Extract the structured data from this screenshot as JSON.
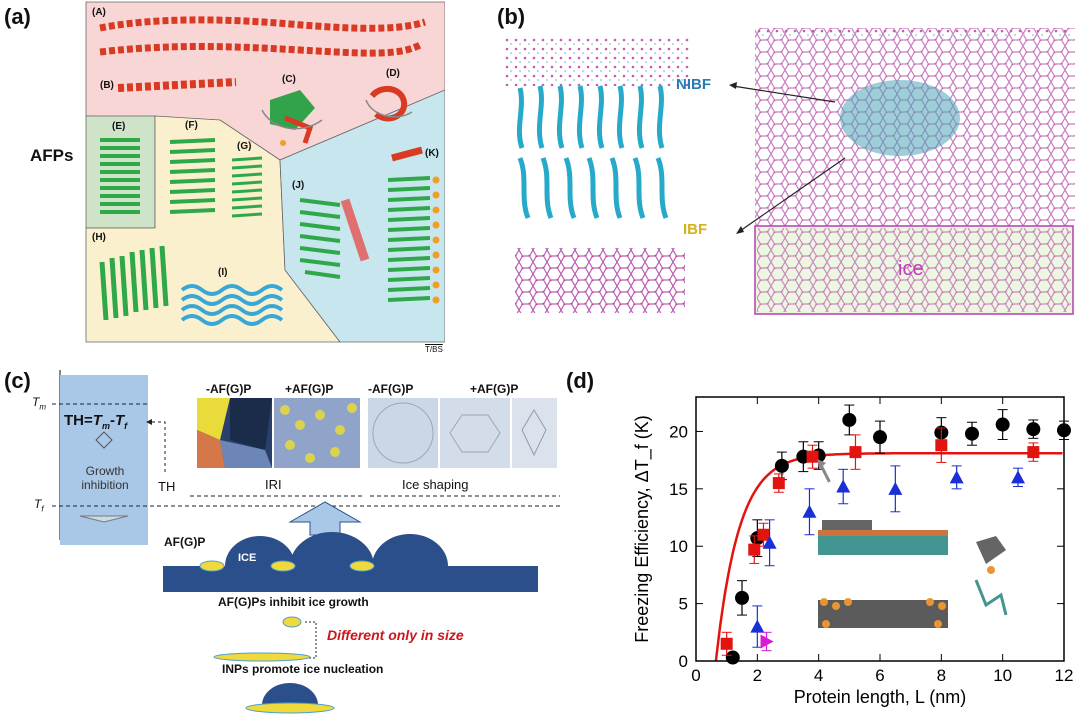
{
  "panels": {
    "a": {
      "label": "(a)",
      "side_label": "AFPs",
      "structure_labels": [
        "(A)",
        "(B)",
        "(C)",
        "(D)",
        "(E)",
        "(F)",
        "(G)",
        "(H)",
        "(I)",
        "(J)",
        "(K)"
      ],
      "credit": "T/BS"
    },
    "b": {
      "label": "(b)",
      "nibf": "NIBF",
      "ibf": "IBF",
      "ice": "ice"
    },
    "c": {
      "label": "(c)",
      "tm": "T",
      "tm_sub": "m",
      "tf": "T",
      "tf_sub": "f",
      "th_eq": "TH=",
      "th_eq_tm": "T",
      "th_eq_tm_sub": "m",
      "th_eq_minus": "-",
      "th_eq_tf": "T",
      "th_eq_tf_sub": "f",
      "growth_inhibition": "Growth inhibition",
      "th": "TH",
      "minus_afgp_1": "-AF(G)P",
      "plus_afgp_1": "+AF(G)P",
      "minus_afgp_2": "-AF(G)P",
      "plus_afgp_2": "+AF(G)P",
      "iri": "IRI",
      "ice_shaping": "Ice shaping",
      "afgp": "AF(G)P",
      "ice": "ICE",
      "inhibit": "AF(G)Ps inhibit ice growth",
      "different": "Different only in size",
      "inps": "INPs promote ice nucleation"
    },
    "d": {
      "label": "(d)"
    }
  },
  "chart_data": {
    "type": "scatter",
    "xlabel": "Protein length, L (nm)",
    "ylabel": "Freezing Efficiency, ΔT_f (K)",
    "xlim": [
      0,
      12
    ],
    "ylim": [
      0,
      23
    ],
    "xticks": [
      "0",
      "2",
      "4",
      "6",
      "8",
      "10",
      "12"
    ],
    "yticks": [
      "0",
      "5",
      "10",
      "15",
      "20"
    ],
    "series": [
      {
        "marker": "circle",
        "color": "#000000",
        "x": [
          1.2,
          1.5,
          2.0,
          2.8,
          3.5,
          4.0,
          5.0,
          6.0,
          8.0,
          9.0,
          10.0,
          11.0,
          12.0
        ],
        "y": [
          0.3,
          5.5,
          10.7,
          17.0,
          17.8,
          17.9,
          21.0,
          19.5,
          19.9,
          19.8,
          20.6,
          20.2,
          20.1
        ],
        "err": [
          0.3,
          1.5,
          1.6,
          1.2,
          1.3,
          1.2,
          1.3,
          1.4,
          1.3,
          1.0,
          1.3,
          0.8,
          0.8
        ]
      },
      {
        "marker": "square",
        "color": "#e3130f",
        "x": [
          1.0,
          1.9,
          2.2,
          2.7,
          3.8,
          5.2,
          8.0,
          11.0
        ],
        "y": [
          1.5,
          9.7,
          11.0,
          15.5,
          17.8,
          18.2,
          18.8,
          18.2
        ],
        "err": [
          1.0,
          1.2,
          1.0,
          0.8,
          1.0,
          1.5,
          1.5,
          0.8
        ]
      },
      {
        "marker": "triangle",
        "color": "#1a2fd6",
        "x": [
          2.0,
          2.4,
          3.7,
          4.8,
          6.5,
          8.5,
          10.5
        ],
        "y": [
          3.0,
          10.3,
          13.0,
          15.2,
          15.0,
          16.0,
          16.0
        ],
        "err": [
          1.8,
          2.0,
          2.0,
          1.5,
          2.0,
          1.0,
          0.8
        ]
      },
      {
        "marker": "triangle-right",
        "color": "#d61ad6",
        "x": [
          2.3
        ],
        "y": [
          1.7
        ],
        "err": [
          0.8
        ]
      }
    ],
    "fit": {
      "color": "#e3130f",
      "form": "a*(1-exp(-(x-x0)/t))",
      "a": 18.1,
      "x0": 0.65,
      "t": 0.75
    }
  }
}
